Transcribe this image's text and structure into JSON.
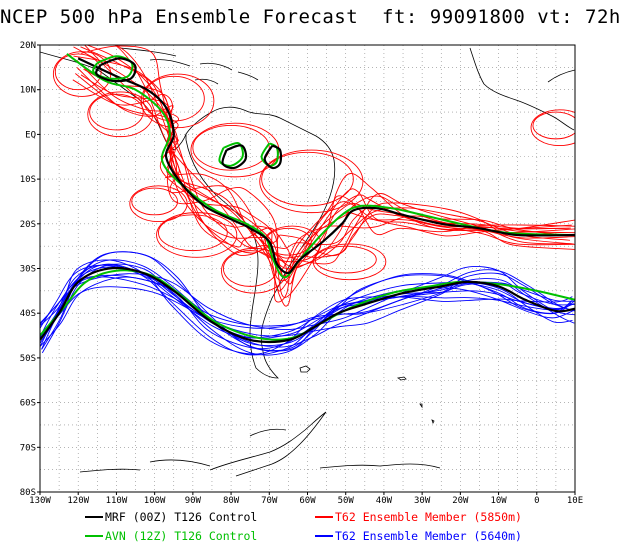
{
  "header": {
    "title": "NCEP 500 hPa Ensemble Forecast  ft: 99091800 vt: 72h"
  },
  "map": {
    "lon_range": [
      -130,
      10
    ],
    "lat_range": [
      -80,
      20
    ],
    "lat_labels": [
      "20N",
      "10N",
      "EQ",
      "10S",
      "20S",
      "30S",
      "40S",
      "50S",
      "60S",
      "70S",
      "80S"
    ],
    "lon_labels": [
      "130W",
      "120W",
      "110W",
      "100W",
      "90W",
      "80W",
      "70W",
      "60W",
      "50W",
      "40W",
      "30W",
      "20W",
      "10W",
      "0",
      "10E"
    ],
    "grid": "dotted 5-degree",
    "region": "South America and South Atlantic"
  },
  "legend": {
    "items": [
      {
        "label": "MRF (00Z) T126 Control",
        "color": "#000000"
      },
      {
        "label": "AVN (12Z) T126 Control",
        "color": "#00c000"
      },
      {
        "label": "T62 Ensemble Member (5850m)",
        "color": "#ff0000"
      },
      {
        "label": "T62 Ensemble Member (5640m)",
        "color": "#0000ff"
      }
    ]
  },
  "contours": {
    "mrf_5850": [
      [
        -120,
        17
      ],
      [
        -110,
        13
      ],
      [
        -102,
        10
      ],
      [
        -97,
        6
      ],
      [
        -95,
        0
      ],
      [
        -97,
        -5
      ],
      [
        -93,
        -11
      ],
      [
        -87,
        -16
      ],
      [
        -80,
        -19
      ],
      [
        -75,
        -21
      ],
      [
        -70,
        -24
      ],
      [
        -68,
        -29
      ],
      [
        -65,
        -31
      ],
      [
        -62,
        -28
      ],
      [
        -56,
        -24
      ],
      [
        -51,
        -20
      ],
      [
        -48,
        -17
      ],
      [
        -42,
        -16.5
      ],
      [
        -35,
        -18
      ],
      [
        -25,
        -20
      ],
      [
        -15,
        -21
      ],
      [
        -5,
        -22.5
      ],
      [
        10,
        -22.5
      ]
    ],
    "avn_5850": [
      [
        -123,
        18
      ],
      [
        -113,
        12
      ],
      [
        -105,
        10
      ],
      [
        -98,
        5
      ],
      [
        -96,
        0
      ],
      [
        -98,
        -6
      ],
      [
        -92,
        -12
      ],
      [
        -84,
        -17
      ],
      [
        -76,
        -20
      ],
      [
        -71,
        -23
      ],
      [
        -69,
        -28
      ],
      [
        -66,
        -32
      ],
      [
        -62,
        -28
      ],
      [
        -57,
        -23
      ],
      [
        -51,
        -18
      ],
      [
        -46,
        -16
      ],
      [
        -38,
        -16.5
      ],
      [
        -30,
        -18
      ],
      [
        -20,
        -20
      ],
      [
        -8,
        -22
      ],
      [
        10,
        -22.5
      ]
    ],
    "mrf_5640": [
      [
        -130,
        -46
      ],
      [
        -125,
        -40
      ],
      [
        -120,
        -33
      ],
      [
        -112,
        -30
      ],
      [
        -103,
        -31
      ],
      [
        -95,
        -35
      ],
      [
        -85,
        -42
      ],
      [
        -75,
        -46
      ],
      [
        -65,
        -46
      ],
      [
        -58,
        -43
      ],
      [
        -52,
        -40
      ],
      [
        -45,
        -38
      ],
      [
        -35,
        -35.5
      ],
      [
        -25,
        -34
      ],
      [
        -18,
        -33
      ],
      [
        -10,
        -34
      ],
      [
        -3,
        -37
      ],
      [
        5,
        -39.5
      ],
      [
        10,
        -39
      ]
    ],
    "avn_5640": [
      [
        -130,
        -45
      ],
      [
        -124,
        -39
      ],
      [
        -118,
        -33
      ],
      [
        -110,
        -30.5
      ],
      [
        -101,
        -31.5
      ],
      [
        -93,
        -36
      ],
      [
        -84,
        -42
      ],
      [
        -73,
        -45.5
      ],
      [
        -64,
        -45.5
      ],
      [
        -56,
        -42
      ],
      [
        -48,
        -38.5
      ],
      [
        -38,
        -35.5
      ],
      [
        -28,
        -34
      ],
      [
        -20,
        -33
      ],
      [
        -10,
        -33.5
      ],
      [
        0,
        -35
      ],
      [
        10,
        -37
      ]
    ],
    "mrf_blobs": [
      [
        [
          -115,
          16
        ],
        [
          -110,
          17.5
        ],
        [
          -106,
          16
        ],
        [
          -107,
          13
        ],
        [
          -112,
          12.5
        ],
        [
          -116,
          14
        ],
        [
          -115,
          16
        ]
      ],
      [
        [
          -82,
          -3
        ],
        [
          -78,
          -2
        ],
        [
          -77,
          -5
        ],
        [
          -80,
          -7
        ],
        [
          -83,
          -6
        ],
        [
          -82,
          -3
        ]
      ],
      [
        [
          -70,
          -2
        ],
        [
          -68,
          -3
        ],
        [
          -68,
          -6
        ],
        [
          -70,
          -7
        ],
        [
          -72,
          -5
        ],
        [
          -70,
          -2
        ]
      ]
    ]
  }
}
